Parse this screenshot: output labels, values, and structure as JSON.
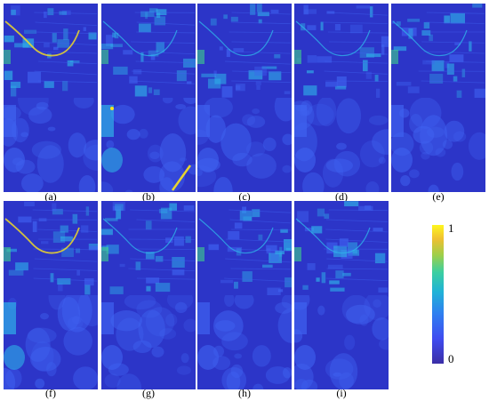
{
  "panels": [
    {
      "label": "(a)"
    },
    {
      "label": "(b)"
    },
    {
      "label": "(c)"
    },
    {
      "label": "(d)"
    },
    {
      "label": "(e)"
    },
    {
      "label": "(f)"
    },
    {
      "label": "(g)"
    },
    {
      "label": "(h)"
    },
    {
      "label": "(i)"
    }
  ],
  "colorbar": {
    "max_label": "1",
    "min_label": "0",
    "colors": [
      "#3b2ea6",
      "#3f4cf0",
      "#2f7ff0",
      "#20b3d6",
      "#3ccfa0",
      "#9ccf4a",
      "#f0c030",
      "#fef61e"
    ]
  },
  "palette": {
    "base": "#2c35c8",
    "mid": "#3f62f0",
    "highlight": "#2fb0e8",
    "peak": "#fbe41e",
    "green": "#3fd08a"
  }
}
